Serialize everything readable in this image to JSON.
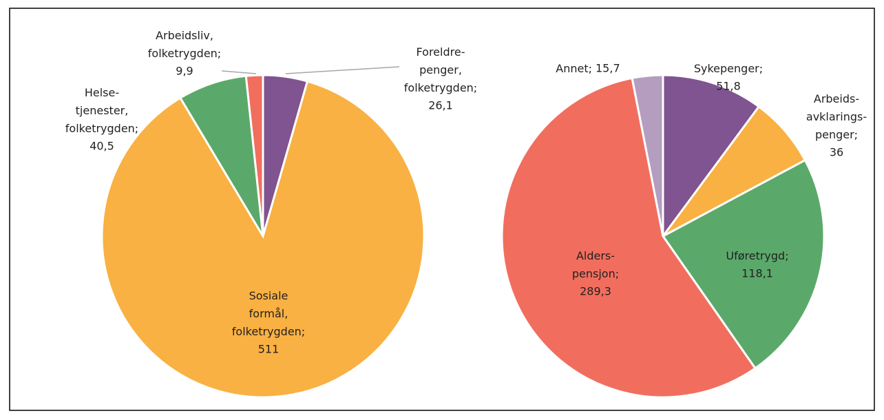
{
  "chart_data": [
    {
      "type": "pie",
      "categories": [
        "Foreldre-\npenger,\nfolketrygden;",
        "Sosiale\nformål,\nfolketrygden;",
        "Helse-\ntjenester,\nfolketrygden;",
        "Arbeidsliv,\nfolketrygden;"
      ],
      "values": [
        26.1,
        511,
        40.5,
        9.9
      ],
      "value_labels": [
        "26,1",
        "511",
        "40,5",
        "9,9"
      ],
      "colors": [
        "#7f5490",
        "#f8b142",
        "#5aa96b",
        "#f16e5e"
      ]
    },
    {
      "type": "pie",
      "categories": [
        "Sykepenger;",
        "Arbeids-\navklarings-\npenger;",
        "Uføretrygd;",
        "Alders-\npensjon;",
        "Annet;"
      ],
      "values": [
        51.8,
        36,
        118.1,
        289.3,
        15.7
      ],
      "value_labels": [
        "51,8",
        "36",
        "118,1",
        "289,3",
        "15,7"
      ],
      "colors": [
        "#7f5490",
        "#f8b142",
        "#5aa96b",
        "#f16e5e",
        "#b59dc0"
      ]
    }
  ]
}
